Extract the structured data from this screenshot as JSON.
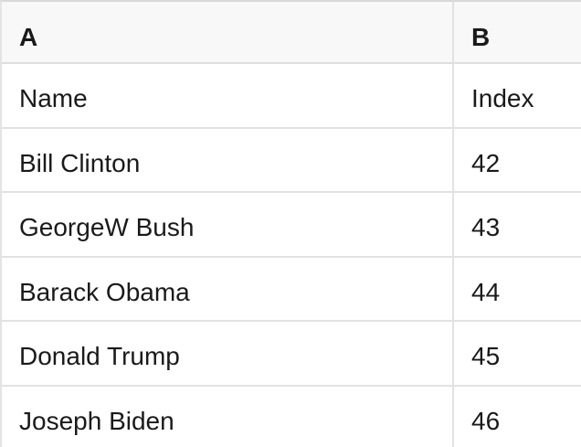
{
  "colors": {
    "header_bg": "#f8f8f8",
    "cell_bg": "#ffffff",
    "grid_border": "#e2e2e2",
    "top_border": "#d9d9d9",
    "text": "#1a1a1a"
  },
  "table": {
    "header": [
      {
        "label": "A"
      },
      {
        "label": "B"
      }
    ],
    "rows": [
      {
        "a": "Name",
        "b": "Index"
      },
      {
        "a": "Bill Clinton",
        "b": "42"
      },
      {
        "a": "GeorgeW Bush",
        "b": "43"
      },
      {
        "a": "Barack Obama",
        "b": "44"
      },
      {
        "a": "Donald Trump",
        "b": "45"
      },
      {
        "a": "Joseph Biden",
        "b": "46"
      }
    ]
  }
}
